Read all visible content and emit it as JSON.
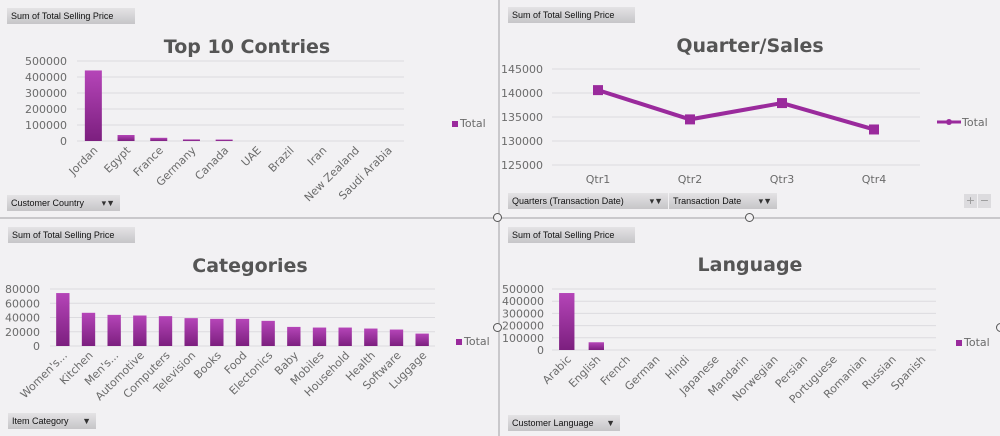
{
  "colors": {
    "bar_top": "#b545b8",
    "bar_bottom": "#7c1f7f",
    "line": "#9a2a9c",
    "grid": "#dcdbdf",
    "axis_text": "#6b6b6b",
    "title": "#555555"
  },
  "panels": {
    "countries": {
      "field_button": "Sum of Total Selling Price",
      "filter_button": "Customer Country",
      "filter_icon": "filter-funnel-icon"
    },
    "quarters": {
      "field_button": "Sum of Total Selling Price",
      "filter_buttons": [
        "Quarters (Transaction Date)",
        "Transaction Date"
      ],
      "filter_icon": "filter-funnel-icon",
      "zoom_in": "+",
      "zoom_out": "−"
    },
    "categories": {
      "field_button": "Sum of Total Selling Price",
      "filter_button": "Item Category",
      "dropdown_icon": "dropdown-arrow-icon"
    },
    "language": {
      "field_button": "Sum of Total Selling Price",
      "filter_button": "Customer Language",
      "dropdown_icon": "dropdown-arrow-icon"
    }
  },
  "chart_data": [
    {
      "type": "bar",
      "title": "Top 10 Contries",
      "categories": [
        "Jordan",
        "Egypt",
        "France",
        "Germany",
        "Canada",
        "UAE",
        "Brazil",
        "Iran",
        "New Zealand",
        "Saudi Arabia"
      ],
      "series": [
        {
          "name": "Total",
          "values": [
            441000,
            37500,
            20000,
            10000,
            9000,
            0,
            0,
            0,
            0,
            0
          ]
        }
      ],
      "yticks": [
        0,
        100000,
        200000,
        300000,
        400000,
        500000
      ],
      "ylim": [
        0,
        500000
      ],
      "grid": true,
      "legend": "right"
    },
    {
      "type": "line",
      "title": "Quarter/Sales",
      "categories": [
        "Qtr1",
        "Qtr2",
        "Qtr3",
        "Qtr4"
      ],
      "series": [
        {
          "name": "Total",
          "values": [
            140600,
            134500,
            137900,
            132400
          ]
        }
      ],
      "yticks": [
        125000,
        130000,
        135000,
        140000,
        145000
      ],
      "ylim": [
        125000,
        145000
      ],
      "grid": true,
      "legend": "right"
    },
    {
      "type": "bar",
      "title": "Categories",
      "categories": [
        "Women's...",
        "Kitchen",
        "Men's...",
        "Automotive",
        "Computers",
        "Television",
        "Books",
        "Food",
        "Electonics",
        "Baby",
        "Mobiles",
        "Household",
        "Health",
        "Software",
        "Luggage"
      ],
      "series": [
        {
          "name": "Total",
          "values": [
            74300,
            46600,
            43700,
            42800,
            41900,
            39100,
            38100,
            38100,
            35300,
            26800,
            25900,
            25900,
            24500,
            23100,
            17400
          ]
        }
      ],
      "yticks": [
        0,
        20000,
        40000,
        60000,
        80000
      ],
      "ylim": [
        0,
        80000
      ],
      "grid": true,
      "legend": "right"
    },
    {
      "type": "bar",
      "title": "Language",
      "categories": [
        "Arabic",
        "English",
        "French",
        "German",
        "Hindi",
        "Japanese",
        "Mandarin",
        "Norwegian",
        "Persian",
        "Portuguese",
        "Romanian",
        "Russian",
        "Spanish"
      ],
      "series": [
        {
          "name": "Total",
          "values": [
            467000,
            63500,
            0,
            0,
            0,
            0,
            0,
            0,
            0,
            0,
            0,
            0,
            0
          ]
        }
      ],
      "yticks": [
        0,
        100000,
        200000,
        300000,
        400000,
        500000
      ],
      "ylim": [
        0,
        500000
      ],
      "grid": true,
      "legend": "right"
    }
  ]
}
